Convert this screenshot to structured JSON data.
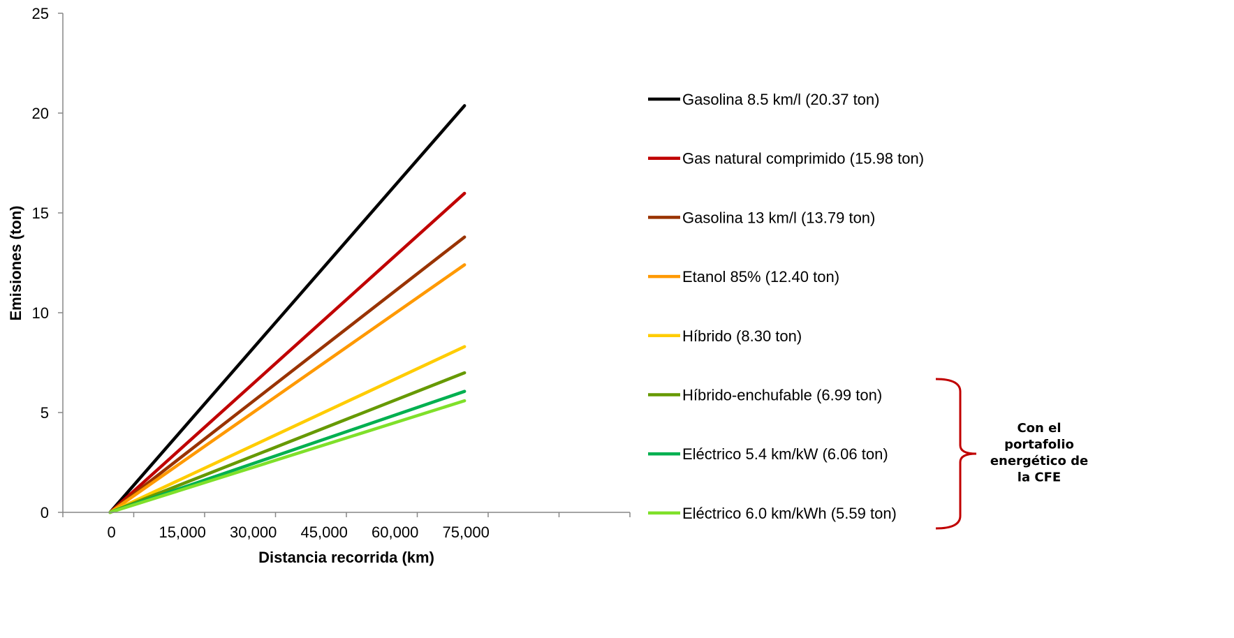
{
  "chart_data": {
    "type": "line",
    "title": "",
    "xlabel": "Distancia recorrida (km)",
    "ylabel": "Emisiones (ton)",
    "xlim": [
      -10000,
      110000
    ],
    "ylim": [
      0,
      25
    ],
    "x_ticks": [
      0,
      15000,
      30000,
      45000,
      60000,
      75000
    ],
    "x_tick_labels": [
      "0",
      "15,000",
      "30,000",
      "45,000",
      "60,000",
      "75,000"
    ],
    "y_ticks": [
      0,
      5,
      10,
      15,
      20,
      25
    ],
    "y_tick_labels": [
      "0",
      "5",
      "10",
      "15",
      "20",
      "25"
    ],
    "grid": false,
    "legend_position": "right",
    "x": [
      0,
      75000
    ],
    "series": [
      {
        "name": "Gasolina 8.5 km/l (20.37 ton)",
        "color": "#000000",
        "values": [
          0,
          20.37
        ]
      },
      {
        "name": "Gas natural comprimido (15.98 ton)",
        "color": "#C00000",
        "values": [
          0,
          15.98
        ]
      },
      {
        "name": "Gasolina 13 km/l (13.79 ton)",
        "color": "#993300",
        "values": [
          0,
          13.79
        ]
      },
      {
        "name": "Etanol 85% (12.40 ton)",
        "color": "#FF9900",
        "values": [
          0,
          12.4
        ]
      },
      {
        "name": "Híbrido (8.30 ton)",
        "color": "#FFCC00",
        "values": [
          0,
          8.3
        ]
      },
      {
        "name": "Híbrido-enchufable (6.99 ton)",
        "color": "#669900",
        "values": [
          0,
          6.99
        ]
      },
      {
        "name": "Eléctrico 5.4 km/kW (6.06 ton)",
        "color": "#00B050",
        "values": [
          0,
          6.06
        ]
      },
      {
        "name": "Eléctrico 6.0 km/kWh (5.59 ton)",
        "color": "#7FE02A",
        "values": [
          0,
          5.59
        ]
      }
    ],
    "annotation": {
      "lines": [
        "Con el",
        "portafolio",
        "energético de",
        "la CFE"
      ],
      "brace_color": "#C00000",
      "brace_covers": [
        "Híbrido-enchufable (6.99 ton)",
        "Eléctrico 5.4 km/kW (6.06 ton)",
        "Eléctrico 6.0 km/kWh (5.59 ton)"
      ]
    }
  }
}
